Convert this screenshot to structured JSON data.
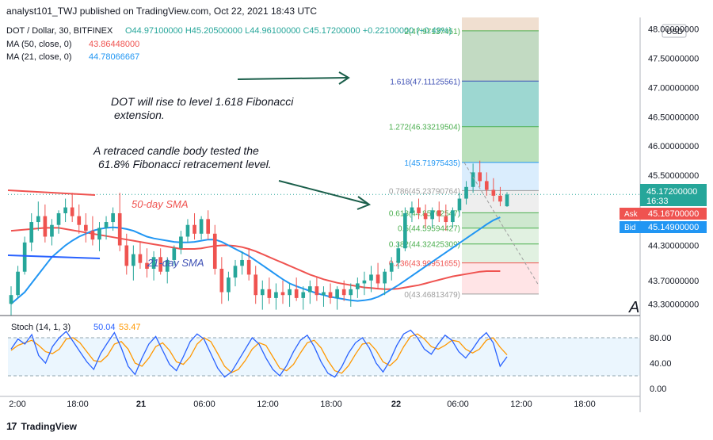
{
  "header": {
    "publish_line": "analyst101_TWJ published on TradingView.com, Oct 22, 2021 18:43 UTC"
  },
  "legend": {
    "symbol": "DOT / Dollar, 30, BITFINEX",
    "ohlc": "O44.97100000  H45.20500000  L44.96100000  C45.17200000  +0.22100000 (+0.49%)",
    "ma50_label": "MA (50, close, 0)",
    "ma50_value": "43.86448000",
    "ma21_label": "MA (21, close, 0)",
    "ma21_value": "44.78066667"
  },
  "annotations": {
    "rise_line1": "DOT will rise to level 1.618 Fibonacci",
    "rise_line2": "extension.",
    "retrace_line1": "A retraced candle body tested the",
    "retrace_line2": "61.8% Fibonacci retracement level.",
    "sma50": "50-day SMA",
    "sma21": "21-day SMA",
    "wave_letter": "A"
  },
  "currency": "USD",
  "price_axis": {
    "ticks": [
      "48.00000000",
      "47.50000000",
      "47.00000000",
      "46.50000000",
      "46.00000000",
      "45.50000000",
      "44.30000000",
      "43.70000000",
      "43.30000000"
    ],
    "last_price": "45.17200000",
    "countdown": "16:33",
    "ask_label": "Ask",
    "ask_value": "45.16700000",
    "bid_label": "Bid",
    "bid_value": "45.14900000"
  },
  "fib_levels": [
    {
      "label": "2(47.97137451)"
    },
    {
      "label": "1.618(47.11125561)"
    },
    {
      "label": "1.272(46.33219504)"
    },
    {
      "label": "1(45.71975435)"
    },
    {
      "label": "0.786(45.23790764)"
    },
    {
      "label": "0.618(44.85762547)"
    },
    {
      "label": "0.5(44.59594427)"
    },
    {
      "label": "0.382(44.32425309)"
    },
    {
      "label": "0.236(43.99951655)"
    },
    {
      "label": "0(43.46813479)"
    }
  ],
  "stoch": {
    "label": "Stoch (14, 1, 3)",
    "k_value": "50.04",
    "d_value": "53.47",
    "ticks": [
      "80.00",
      "40.00",
      "0.00"
    ]
  },
  "time_axis": [
    "2:00",
    "18:00",
    "21",
    "06:00",
    "12:00",
    "18:00",
    "22",
    "06:00",
    "12:00",
    "18:00"
  ],
  "footer": {
    "brand": "TradingView"
  },
  "colors": {
    "up": "#26a69a",
    "down": "#ef5350",
    "ma50": "#ef5350",
    "ma21": "#2196f3",
    "stoch_k": "#2962ff",
    "stoch_d": "#ff9800",
    "annot_arrow": "#1a5e4a"
  },
  "chart_data": {
    "type": "candlestick",
    "title": "DOT / Dollar, 30, BITFINEX",
    "ylim": [
      43.1,
      48.2
    ],
    "candles": [
      {
        "o": 43.3,
        "h": 43.6,
        "l": 43.1,
        "c": 43.45
      },
      {
        "o": 43.45,
        "h": 43.95,
        "l": 43.4,
        "c": 43.85
      },
      {
        "o": 43.85,
        "h": 44.45,
        "l": 43.8,
        "c": 44.35
      },
      {
        "o": 44.35,
        "h": 44.85,
        "l": 44.2,
        "c": 44.7
      },
      {
        "o": 44.7,
        "h": 45.05,
        "l": 44.55,
        "c": 44.8
      },
      {
        "o": 44.8,
        "h": 45.0,
        "l": 44.35,
        "c": 44.45
      },
      {
        "o": 44.45,
        "h": 44.75,
        "l": 44.3,
        "c": 44.65
      },
      {
        "o": 44.65,
        "h": 44.9,
        "l": 44.5,
        "c": 44.85
      },
      {
        "o": 44.85,
        "h": 45.1,
        "l": 44.7,
        "c": 44.95
      },
      {
        "o": 44.95,
        "h": 45.2,
        "l": 44.7,
        "c": 44.8
      },
      {
        "o": 44.8,
        "h": 45.0,
        "l": 44.5,
        "c": 44.65
      },
      {
        "o": 44.65,
        "h": 44.85,
        "l": 44.35,
        "c": 44.55
      },
      {
        "o": 44.55,
        "h": 44.8,
        "l": 44.3,
        "c": 44.4
      },
      {
        "o": 44.4,
        "h": 44.7,
        "l": 44.2,
        "c": 44.6
      },
      {
        "o": 44.6,
        "h": 44.8,
        "l": 44.4,
        "c": 44.7
      },
      {
        "o": 44.7,
        "h": 44.95,
        "l": 44.55,
        "c": 44.85
      },
      {
        "o": 44.85,
        "h": 45.2,
        "l": 44.2,
        "c": 44.3
      },
      {
        "o": 44.3,
        "h": 44.5,
        "l": 43.8,
        "c": 43.95
      },
      {
        "o": 43.95,
        "h": 44.3,
        "l": 43.7,
        "c": 44.15
      },
      {
        "o": 44.15,
        "h": 44.35,
        "l": 43.9,
        "c": 44.0
      },
      {
        "o": 44.0,
        "h": 44.25,
        "l": 43.75,
        "c": 43.9
      },
      {
        "o": 43.9,
        "h": 44.2,
        "l": 43.7,
        "c": 44.1
      },
      {
        "o": 44.1,
        "h": 44.25,
        "l": 43.8,
        "c": 43.85
      },
      {
        "o": 43.85,
        "h": 44.1,
        "l": 43.65,
        "c": 44.05
      },
      {
        "o": 44.05,
        "h": 44.3,
        "l": 43.95,
        "c": 44.25
      },
      {
        "o": 44.25,
        "h": 44.55,
        "l": 44.15,
        "c": 44.45
      },
      {
        "o": 44.45,
        "h": 44.75,
        "l": 44.35,
        "c": 44.65
      },
      {
        "o": 44.65,
        "h": 44.85,
        "l": 44.4,
        "c": 44.5
      },
      {
        "o": 44.5,
        "h": 44.8,
        "l": 44.4,
        "c": 44.75
      },
      {
        "o": 44.75,
        "h": 44.9,
        "l": 44.4,
        "c": 44.5
      },
      {
        "o": 44.5,
        "h": 44.65,
        "l": 43.8,
        "c": 43.9
      },
      {
        "o": 43.9,
        "h": 44.1,
        "l": 43.3,
        "c": 43.5
      },
      {
        "o": 43.5,
        "h": 43.85,
        "l": 43.35,
        "c": 43.75
      },
      {
        "o": 43.75,
        "h": 44.05,
        "l": 43.6,
        "c": 43.95
      },
      {
        "o": 43.95,
        "h": 44.2,
        "l": 43.8,
        "c": 44.05
      },
      {
        "o": 44.05,
        "h": 44.25,
        "l": 43.7,
        "c": 43.8
      },
      {
        "o": 43.8,
        "h": 43.95,
        "l": 43.3,
        "c": 43.45
      },
      {
        "o": 43.45,
        "h": 43.7,
        "l": 43.2,
        "c": 43.55
      },
      {
        "o": 43.55,
        "h": 43.75,
        "l": 43.3,
        "c": 43.4
      },
      {
        "o": 43.4,
        "h": 43.65,
        "l": 43.2,
        "c": 43.5
      },
      {
        "o": 43.5,
        "h": 43.7,
        "l": 43.3,
        "c": 43.45
      },
      {
        "o": 43.45,
        "h": 43.65,
        "l": 43.25,
        "c": 43.55
      },
      {
        "o": 43.55,
        "h": 43.75,
        "l": 43.35,
        "c": 43.4
      },
      {
        "o": 43.4,
        "h": 43.6,
        "l": 43.2,
        "c": 43.5
      },
      {
        "o": 43.5,
        "h": 43.7,
        "l": 43.3,
        "c": 43.6
      },
      {
        "o": 43.6,
        "h": 43.75,
        "l": 43.35,
        "c": 43.45
      },
      {
        "o": 43.45,
        "h": 43.6,
        "l": 43.25,
        "c": 43.5
      },
      {
        "o": 43.5,
        "h": 43.65,
        "l": 43.3,
        "c": 43.4
      },
      {
        "o": 43.4,
        "h": 43.6,
        "l": 43.2,
        "c": 43.55
      },
      {
        "o": 43.55,
        "h": 43.7,
        "l": 43.35,
        "c": 43.45
      },
      {
        "o": 43.45,
        "h": 43.65,
        "l": 43.25,
        "c": 43.55
      },
      {
        "o": 43.55,
        "h": 43.75,
        "l": 43.4,
        "c": 43.65
      },
      {
        "o": 43.65,
        "h": 43.85,
        "l": 43.45,
        "c": 43.7
      },
      {
        "o": 43.7,
        "h": 43.95,
        "l": 43.5,
        "c": 43.8
      },
      {
        "o": 43.8,
        "h": 44.0,
        "l": 43.55,
        "c": 43.65
      },
      {
        "o": 43.65,
        "h": 43.9,
        "l": 43.45,
        "c": 43.85
      },
      {
        "o": 43.85,
        "h": 44.1,
        "l": 43.7,
        "c": 44.0
      },
      {
        "o": 44.0,
        "h": 44.35,
        "l": 43.9,
        "c": 44.25
      },
      {
        "o": 44.25,
        "h": 44.95,
        "l": 44.2,
        "c": 44.85
      },
      {
        "o": 44.85,
        "h": 45.05,
        "l": 44.7,
        "c": 44.95
      },
      {
        "o": 44.95,
        "h": 45.1,
        "l": 44.75,
        "c": 44.85
      },
      {
        "o": 44.85,
        "h": 45.0,
        "l": 44.6,
        "c": 44.75
      },
      {
        "o": 44.75,
        "h": 44.95,
        "l": 44.6,
        "c": 44.9
      },
      {
        "o": 44.9,
        "h": 45.05,
        "l": 44.7,
        "c": 44.8
      },
      {
        "o": 44.8,
        "h": 45.0,
        "l": 44.55,
        "c": 44.7
      },
      {
        "o": 44.7,
        "h": 44.95,
        "l": 44.6,
        "c": 44.9
      },
      {
        "o": 44.9,
        "h": 45.2,
        "l": 44.8,
        "c": 45.1
      },
      {
        "o": 45.1,
        "h": 45.4,
        "l": 45.0,
        "c": 45.3
      },
      {
        "o": 45.3,
        "h": 45.7,
        "l": 45.2,
        "c": 45.55
      },
      {
        "o": 45.55,
        "h": 45.75,
        "l": 45.3,
        "c": 45.4
      },
      {
        "o": 45.4,
        "h": 45.55,
        "l": 45.15,
        "c": 45.25
      },
      {
        "o": 45.25,
        "h": 45.45,
        "l": 45.05,
        "c": 45.15
      },
      {
        "o": 45.15,
        "h": 45.3,
        "l": 44.97,
        "c": 45.05
      },
      {
        "o": 44.97,
        "h": 45.21,
        "l": 44.96,
        "c": 45.17
      }
    ],
    "ma50": [
      44.55,
      44.56,
      44.57,
      44.58,
      44.59,
      44.6,
      44.6,
      44.6,
      44.58,
      44.56,
      44.54,
      44.52,
      44.5,
      44.48,
      44.46,
      44.44,
      44.42,
      44.4,
      44.38,
      44.36,
      44.34,
      44.32,
      44.3,
      44.28,
      44.26,
      44.24,
      44.24,
      44.24,
      44.25,
      44.27,
      44.29,
      44.3,
      44.3,
      44.29,
      44.27,
      44.24,
      44.2,
      44.15,
      44.1,
      44.05,
      44.0,
      43.95,
      43.9,
      43.85,
      43.8,
      43.76,
      43.72,
      43.69,
      43.66,
      43.64,
      43.62,
      43.6,
      43.58,
      43.57,
      43.56,
      43.55,
      43.55,
      43.56,
      43.58,
      43.6,
      43.62,
      43.65,
      43.68,
      43.71,
      43.74,
      43.77,
      43.79,
      43.81,
      43.83,
      43.85,
      43.86,
      43.86,
      43.86
    ],
    "ma21": [
      43.3,
      43.4,
      43.5,
      43.65,
      43.8,
      43.95,
      44.1,
      44.2,
      44.3,
      44.38,
      44.45,
      44.5,
      44.55,
      44.58,
      44.6,
      44.61,
      44.6,
      44.58,
      44.55,
      44.5,
      44.45,
      44.42,
      44.4,
      44.38,
      44.36,
      44.35,
      44.35,
      44.36,
      44.38,
      44.4,
      44.4,
      44.36,
      44.3,
      44.24,
      44.18,
      44.12,
      44.04,
      43.96,
      43.88,
      43.8,
      43.72,
      43.65,
      43.6,
      43.56,
      43.52,
      43.48,
      43.45,
      43.42,
      43.4,
      43.38,
      43.36,
      43.35,
      43.36,
      43.38,
      43.42,
      43.48,
      43.55,
      43.62,
      43.7,
      43.78,
      43.86,
      43.94,
      44.02,
      44.1,
      44.18,
      44.26,
      44.34,
      44.42,
      44.5,
      44.58,
      44.66,
      44.73,
      44.78
    ],
    "stoch_k": [
      62,
      78,
      70,
      85,
      52,
      40,
      66,
      80,
      90,
      74,
      58,
      42,
      30,
      55,
      72,
      88,
      64,
      35,
      22,
      48,
      70,
      82,
      60,
      38,
      28,
      50,
      74,
      86,
      78,
      55,
      32,
      18,
      26,
      44,
      62,
      80,
      70,
      48,
      30,
      20,
      36,
      58,
      76,
      84,
      66,
      42,
      24,
      18,
      34,
      56,
      72,
      80,
      64,
      40,
      26,
      44,
      68,
      86,
      92,
      80,
      62,
      54,
      70,
      84,
      76,
      58,
      48,
      62,
      78,
      88,
      72,
      35,
      50
    ],
    "stoch_d": [
      60,
      68,
      72,
      76,
      68,
      58,
      55,
      62,
      78,
      80,
      72,
      58,
      44,
      42,
      52,
      70,
      74,
      62,
      40,
      35,
      48,
      66,
      72,
      60,
      42,
      38,
      50,
      70,
      80,
      74,
      55,
      35,
      25,
      30,
      44,
      62,
      72,
      68,
      50,
      32,
      28,
      38,
      56,
      72,
      76,
      64,
      44,
      28,
      24,
      36,
      54,
      70,
      72,
      60,
      42,
      36,
      46,
      66,
      82,
      86,
      78,
      66,
      62,
      68,
      76,
      74,
      62,
      56,
      62,
      76,
      80,
      65,
      53
    ]
  }
}
